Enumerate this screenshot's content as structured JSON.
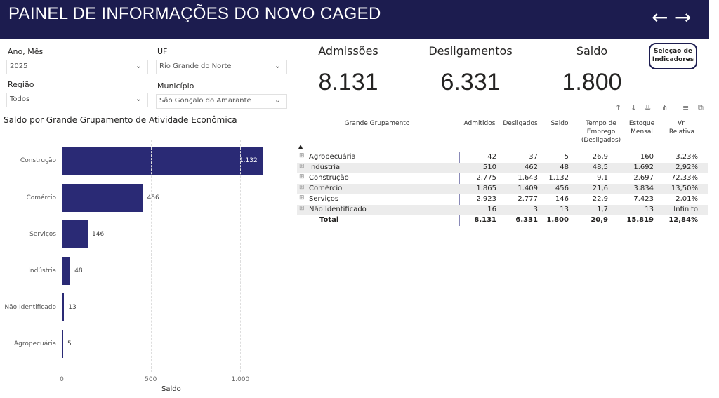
{
  "header": {
    "title": "PAINEL DE INFORMAÇÕES DO NOVO CAGED",
    "back_icon": "arrow-left-icon",
    "forward_icon": "arrow-right-icon"
  },
  "filters": {
    "ano_mes": {
      "label": "Ano, Mês",
      "value": "2025"
    },
    "uf": {
      "label": "UF",
      "value": "Rio Grande do Norte"
    },
    "regiao": {
      "label": "Região",
      "value": "Todos"
    },
    "municipio": {
      "label": "Município",
      "value": "São Gonçalo do Amarante"
    }
  },
  "kpis": [
    {
      "label": "Admissões",
      "value": "8.131"
    },
    {
      "label": "Desligamentos",
      "value": "6.331"
    },
    {
      "label": "Saldo",
      "value": "1.800"
    }
  ],
  "selection_button": {
    "line1": "Seleção de",
    "line2": "Indicadores"
  },
  "chart_data": {
    "type": "bar",
    "orientation": "horizontal",
    "title": "Saldo por Grande Grupamento de Atividade Econômica",
    "categories": [
      "Construção",
      "Comércio",
      "Serviços",
      "Indústria",
      "Não Identificado",
      "Agropecuária"
    ],
    "values": [
      1132,
      456,
      146,
      48,
      13,
      5
    ],
    "labels": [
      "1.132",
      "456",
      "146",
      "48",
      "13",
      "5"
    ],
    "xlabel": "Saldo",
    "xlim": [
      0,
      1150
    ],
    "xticks": [
      0,
      500,
      1000
    ],
    "xtick_labels": [
      "0",
      "500",
      "1.000"
    ],
    "color": "#2a2a75"
  },
  "table": {
    "headers": [
      "Grande Grupamento",
      "Admitidos",
      "Desligados",
      "Saldo",
      "Tempo de Emprego (Desligados)",
      "Estoque Mensal",
      "Vr. Relativa"
    ],
    "header_lines": [
      [
        "Grande Grupamento"
      ],
      [
        "Admitidos"
      ],
      [
        "Desligados"
      ],
      [
        "Saldo"
      ],
      [
        "Tempo de",
        "Emprego",
        "(Desligados)"
      ],
      [
        "Estoque",
        "Mensal"
      ],
      [
        "Vr.",
        "Relativa"
      ]
    ],
    "rows": [
      [
        "Agropecuária",
        "42",
        "37",
        "5",
        "26,9",
        "160",
        "3,23%"
      ],
      [
        "Indústria",
        "510",
        "462",
        "48",
        "48,5",
        "1.692",
        "2,92%"
      ],
      [
        "Construção",
        "2.775",
        "1.643",
        "1.132",
        "9,1",
        "2.697",
        "72,33%"
      ],
      [
        "Comércio",
        "1.865",
        "1.409",
        "456",
        "21,6",
        "3.834",
        "13,50%"
      ],
      [
        "Serviços",
        "2.923",
        "2.777",
        "146",
        "22,9",
        "7.423",
        "2,01%"
      ],
      [
        "Não Identificado",
        "16",
        "3",
        "13",
        "1,7",
        "13",
        "Infinito"
      ]
    ],
    "total": [
      "Total",
      "8.131",
      "6.331",
      "1.800",
      "20,9",
      "15.819",
      "12,84%"
    ]
  }
}
